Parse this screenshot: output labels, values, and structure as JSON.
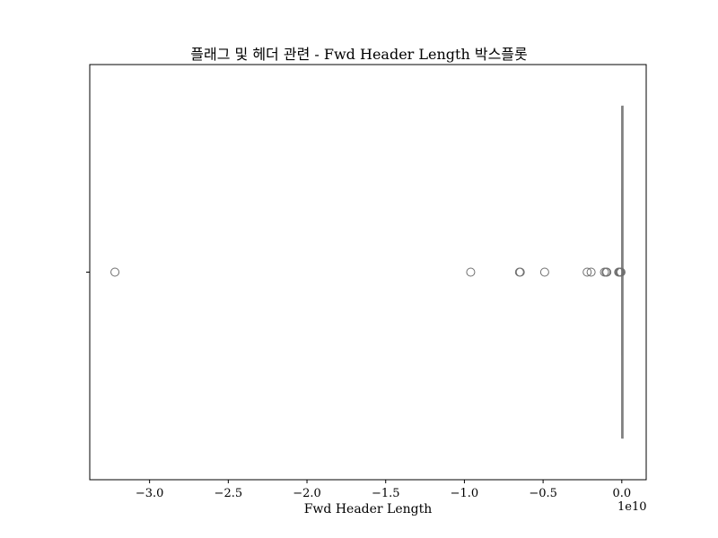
{
  "chart_data": {
    "type": "box",
    "title": "플래그 및 헤더 관련 - Fwd Header Length 박스플롯",
    "xlabel": "Fwd Header Length",
    "ylabel": "",
    "axis_offset_label": "1e10",
    "xlim": [
      -3.38,
      0.155
    ],
    "xticks": [
      -3.0,
      -2.5,
      -2.0,
      -1.5,
      -1.0,
      -0.5,
      0.0
    ],
    "xtick_labels": [
      "−3.0",
      "−2.5",
      "−2.0",
      "−1.5",
      "−1.0",
      "−0.5",
      "0.0"
    ],
    "grid": false,
    "color": "#808080",
    "box": {
      "q1": 0.0,
      "median": 0.0,
      "q3": 0.0,
      "whisker_low": 0.0,
      "whisker_high": 0.0
    },
    "outliers": [
      -3.22,
      -0.96,
      -0.65,
      -0.645,
      -0.49,
      -0.22,
      -0.195,
      -0.11,
      -0.1,
      -0.095,
      -0.02,
      -0.015,
      -0.01,
      -0.005
    ]
  }
}
